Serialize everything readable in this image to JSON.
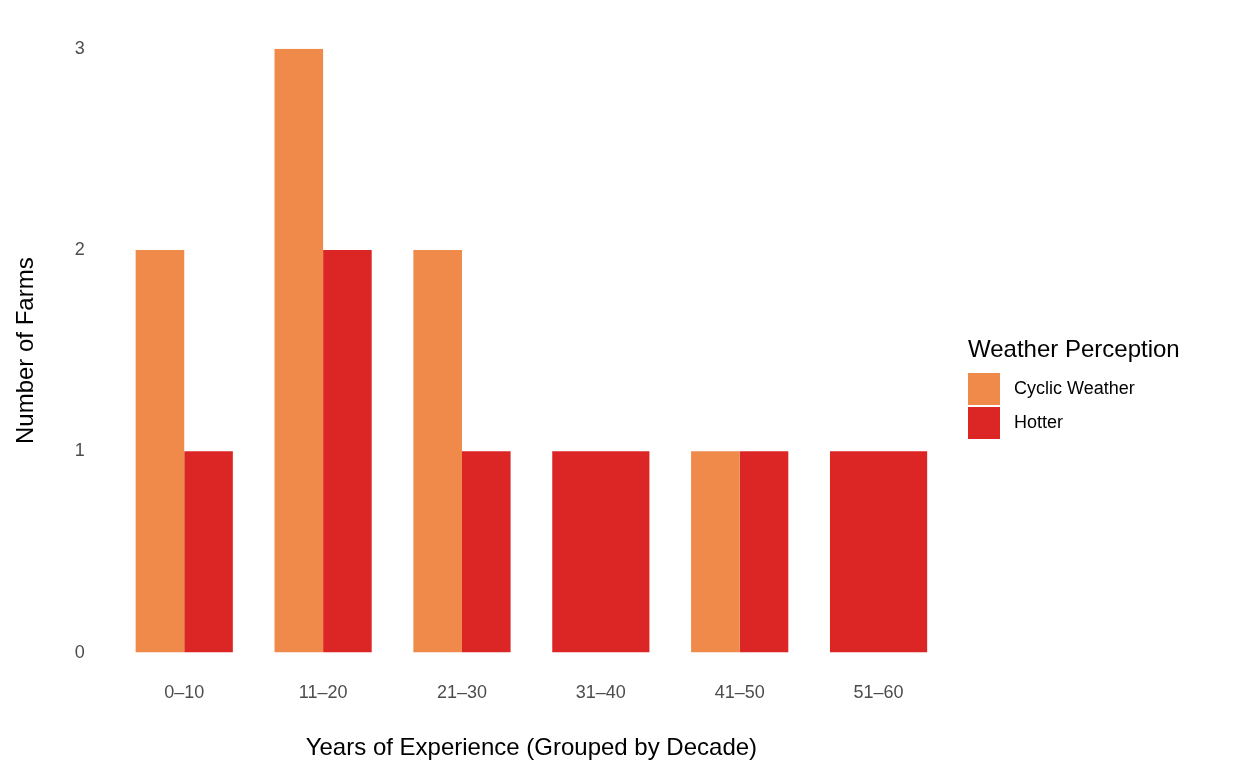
{
  "chart_data": {
    "type": "bar",
    "xlabel": "Years of Experience (Grouped by Decade)",
    "ylabel": "Number of Farms",
    "legend_title": "Weather Perception",
    "legend": "right",
    "grid": false,
    "categories": [
      "0–10",
      "11–20",
      "21–30",
      "31–40",
      "41–50",
      "51–60"
    ],
    "series": [
      {
        "name": "Cyclic Weather",
        "color": "#f08a4b",
        "values": [
          2,
          3,
          2,
          null,
          1,
          null
        ]
      },
      {
        "name": "Hotter",
        "color": "#dc2626",
        "values": [
          1,
          2,
          1,
          1,
          1,
          1
        ]
      }
    ],
    "ylim": [
      0,
      3
    ],
    "yticks": [
      0,
      1,
      2,
      3
    ]
  }
}
